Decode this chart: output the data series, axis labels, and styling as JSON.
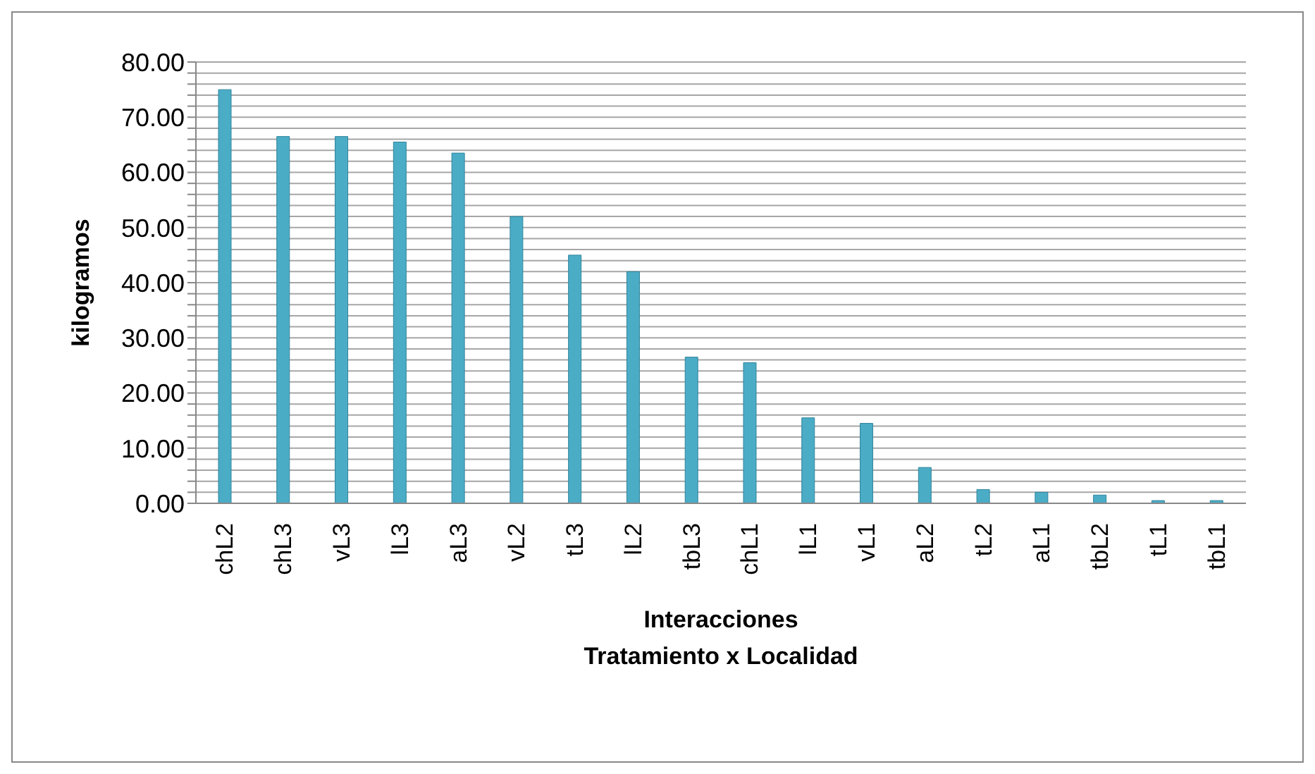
{
  "chart_data": {
    "type": "bar",
    "xlabel": "Interacciones\nTratamiento x Localidad",
    "ylabel": "kilogramos",
    "categories": [
      "chL2",
      "chL3",
      "vL3",
      "lL3",
      "aL3",
      "vL2",
      "tL3",
      "lL2",
      "tbL3",
      "chL1",
      "lL1",
      "vL1",
      "aL2",
      "tL2",
      "aL1",
      "tbL2",
      "tL1",
      "tbL1"
    ],
    "values": [
      75,
      66.5,
      66.5,
      65.5,
      63.5,
      52,
      45,
      42,
      26.5,
      25.5,
      15.5,
      14.5,
      6.5,
      2.5,
      2,
      1.5,
      0.5,
      0.5
    ],
    "color": "#4bacc6",
    "ylim": [
      0,
      80
    ],
    "yticks": [
      {
        "value": 0,
        "label": "0.00"
      },
      {
        "value": 2,
        "label": null
      },
      {
        "value": 4,
        "label": null
      },
      {
        "value": 6,
        "label": null
      },
      {
        "value": 8,
        "label": null
      },
      {
        "value": 10,
        "label": "10.00"
      },
      {
        "value": 12,
        "label": null
      },
      {
        "value": 14,
        "label": null
      },
      {
        "value": 16,
        "label": null
      },
      {
        "value": 18,
        "label": null
      },
      {
        "value": 20,
        "label": "20.00"
      },
      {
        "value": 22,
        "label": null
      },
      {
        "value": 24,
        "label": null
      },
      {
        "value": 26,
        "label": null
      },
      {
        "value": 28,
        "label": null
      },
      {
        "value": 30,
        "label": "30.00"
      },
      {
        "value": 32,
        "label": null
      },
      {
        "value": 34,
        "label": null
      },
      {
        "value": 36,
        "label": null
      },
      {
        "value": 38,
        "label": null
      },
      {
        "value": 40,
        "label": "40.00"
      },
      {
        "value": 42,
        "label": null
      },
      {
        "value": 44,
        "label": null
      },
      {
        "value": 46,
        "label": null
      },
      {
        "value": 48,
        "label": null
      },
      {
        "value": 50,
        "label": "50.00"
      },
      {
        "value": 52,
        "label": null
      },
      {
        "value": 54,
        "label": null
      },
      {
        "value": 56,
        "label": null
      },
      {
        "value": 58,
        "label": null
      },
      {
        "value": 60,
        "label": "60.00"
      },
      {
        "value": 62,
        "label": null
      },
      {
        "value": 64,
        "label": null
      },
      {
        "value": 66,
        "label": null
      },
      {
        "value": 68,
        "label": null
      },
      {
        "value": 70,
        "label": "70.00"
      },
      {
        "value": 72,
        "label": null
      },
      {
        "value": 74,
        "label": null
      },
      {
        "value": 76,
        "label": null
      },
      {
        "value": 78,
        "label": null
      },
      {
        "value": 80,
        "label": "80.00"
      }
    ],
    "grid": "y"
  }
}
